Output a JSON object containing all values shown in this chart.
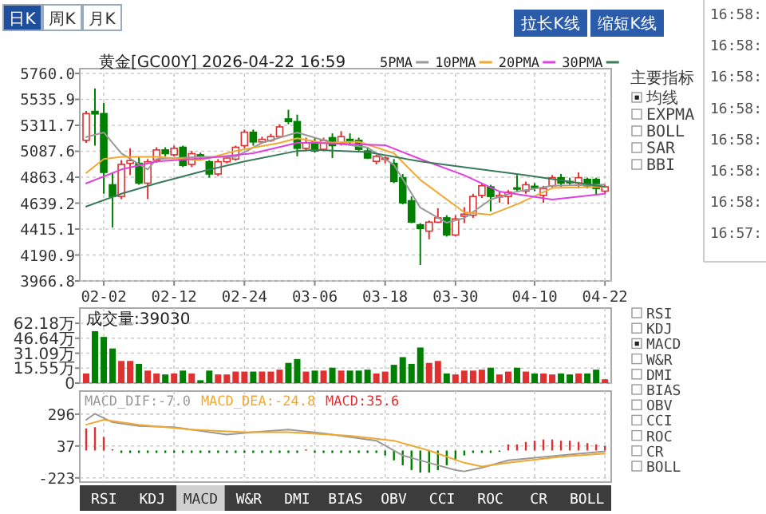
{
  "chart_data": [
    {
      "type": "candlestick",
      "title": "黄金[GC00Y] 2026-04-22 16:59",
      "categories": [
        null,
        null,
        "02-02",
        null,
        null,
        null,
        null,
        null,
        null,
        null,
        "02-12",
        null,
        null,
        null,
        null,
        null,
        null,
        null,
        "02-24",
        null,
        null,
        null,
        null,
        null,
        null,
        null,
        "03-06",
        null,
        null,
        null,
        null,
        null,
        null,
        null,
        "03-18",
        null,
        null,
        null,
        null,
        null,
        null,
        null,
        "03-30",
        null,
        null,
        null,
        null,
        null,
        null,
        null,
        null,
        "04-10",
        null,
        null,
        null,
        null,
        null,
        null,
        null,
        "04-22"
      ],
      "ohlc": [
        [
          5182,
          5436,
          5160,
          5413
        ],
        [
          5432,
          5630,
          5136,
          5410
        ],
        [
          5413,
          5506,
          4720,
          4905
        ],
        [
          4798,
          4905,
          4429,
          4697
        ],
        [
          4697,
          5011,
          4674,
          4974
        ],
        [
          4983,
          5113,
          4882,
          5007
        ],
        [
          4983,
          5043,
          4798,
          4812
        ],
        [
          4812,
          5020,
          4674,
          4997
        ],
        [
          5011,
          5122,
          4988,
          5099
        ],
        [
          5099,
          5122,
          5043,
          5067
        ],
        [
          5057,
          5136,
          5043,
          5113
        ],
        [
          5122,
          5136,
          4951,
          4965
        ],
        [
          4974,
          5090,
          4951,
          5067
        ],
        [
          5057,
          5076,
          5011,
          5043
        ],
        [
          4997,
          5011,
          4859,
          4891
        ],
        [
          4891,
          5020,
          4872,
          4997
        ],
        [
          4997,
          5043,
          4983,
          5029
        ],
        [
          5020,
          5136,
          5006,
          5122
        ],
        [
          5136,
          5275,
          5113,
          5252
        ],
        [
          5252,
          5275,
          5136,
          5168
        ],
        [
          5168,
          5214,
          5159,
          5191
        ],
        [
          5182,
          5238,
          5168,
          5214
        ],
        [
          5214,
          5321,
          5205,
          5298
        ],
        [
          5367,
          5446,
          5321,
          5344
        ],
        [
          5344,
          5404,
          5044,
          5113
        ],
        [
          5113,
          5205,
          5090,
          5159
        ],
        [
          5168,
          5205,
          5076,
          5090
        ],
        [
          5104,
          5205,
          5090,
          5182
        ],
        [
          5205,
          5242,
          5029,
          5136
        ],
        [
          5159,
          5261,
          5136,
          5214
        ],
        [
          5191,
          5242,
          5150,
          5182
        ],
        [
          5182,
          5205,
          5090,
          5104
        ],
        [
          5090,
          5113,
          5020,
          5029
        ],
        [
          5000,
          5057,
          4974,
          5043
        ],
        [
          5020,
          5043,
          4983,
          5029
        ],
        [
          4983,
          5020,
          4812,
          4826
        ],
        [
          4859,
          4891,
          4628,
          4642
        ],
        [
          4660,
          4697,
          4466,
          4475
        ],
        [
          4452,
          4466,
          4105,
          4420
        ],
        [
          4397,
          4489,
          4327,
          4475
        ],
        [
          4475,
          4595,
          4466,
          4512
        ],
        [
          4512,
          4535,
          4350,
          4364
        ],
        [
          4364,
          4535,
          4350,
          4503
        ],
        [
          4526,
          4604,
          4466,
          4544
        ],
        [
          4535,
          4720,
          4512,
          4697
        ],
        [
          4706,
          4812,
          4683,
          4789
        ],
        [
          4780,
          4798,
          4568,
          4697
        ],
        [
          4692,
          4734,
          4642,
          4706
        ],
        [
          4697,
          4752,
          4628,
          4734
        ],
        [
          4771,
          4882,
          4743,
          4766
        ],
        [
          4743,
          4826,
          4720,
          4798
        ],
        [
          4785,
          4812,
          4743,
          4775
        ],
        [
          4706,
          4789,
          4642,
          4766
        ],
        [
          4789,
          4882,
          4766,
          4859
        ],
        [
          4859,
          4891,
          4780,
          4812
        ],
        [
          4826,
          4859,
          4798,
          4817
        ],
        [
          4812,
          4905,
          4766,
          4859
        ],
        [
          4845,
          4859,
          4766,
          4789
        ],
        [
          4845,
          4859,
          4706,
          4766
        ],
        [
          4743,
          4798,
          4720,
          4780
        ]
      ],
      "colors": [
        "#e03030",
        "#008000",
        "#008000",
        "#008000",
        "#e03030",
        "#e03030",
        "#008000",
        "#e03030",
        "#e03030",
        "#008000",
        "#e03030",
        "#008000",
        "#e03030",
        "#008000",
        "#008000",
        "#e03030",
        "#e03030",
        "#e03030",
        "#e03030",
        "#008000",
        "#e03030",
        "#e03030",
        "#e03030",
        "#008000",
        "#008000",
        "#e03030",
        "#008000",
        "#e03030",
        "#008000",
        "#e03030",
        "#008000",
        "#008000",
        "#008000",
        "#e03030",
        "#e03030",
        "#008000",
        "#008000",
        "#008000",
        "#008000",
        "#e03030",
        "#e03030",
        "#008000",
        "#e03030",
        "#e03030",
        "#e03030",
        "#e03030",
        "#008000",
        "#e03030",
        "#e03030",
        "#008000",
        "#e03030",
        "#008000",
        "#e03030",
        "#e03030",
        "#008000",
        "#008000",
        "#e03030",
        "#008000",
        "#008000",
        "#e03030"
      ],
      "series": [
        {
          "name": "5PMA",
          "type": "line",
          "color": "#999999",
          "values": [
            5210,
            null,
            5250,
            null,
            5070,
            null,
            null,
            4930,
            5020,
            null,
            null,
            null,
            null,
            5040,
            null,
            null,
            null,
            5040,
            null,
            null,
            5160,
            null,
            null,
            null,
            5250,
            null,
            null,
            null,
            5160,
            null,
            null,
            null,
            5120,
            null,
            null,
            4970,
            null,
            null,
            4600,
            null,
            null,
            4470,
            null,
            4510,
            null,
            null,
            4670,
            null,
            null,
            4740,
            null,
            null,
            null,
            4790,
            null,
            null,
            null,
            null,
            null,
            4800
          ]
        },
        {
          "name": "10PMA",
          "type": "line",
          "color": "#f0a830",
          "values": [
            4900,
            null,
            5020,
            null,
            5040,
            null,
            null,
            null,
            5040,
            null,
            null,
            null,
            null,
            5010,
            null,
            null,
            null,
            5090,
            null,
            null,
            null,
            null,
            5160,
            null,
            5200,
            null,
            null,
            5160,
            null,
            null,
            null,
            5170,
            null,
            null,
            null,
            5070,
            null,
            null,
            4840,
            null,
            null,
            null,
            null,
            4560,
            null,
            null,
            4540,
            null,
            null,
            4630,
            null,
            null,
            null,
            4770,
            null,
            null,
            null,
            null,
            null,
            4780
          ]
        },
        {
          "name": "20PMA",
          "type": "line",
          "color": "#e040e0",
          "values": [
            4810,
            null,
            null,
            null,
            4930,
            null,
            null,
            null,
            5000,
            null,
            null,
            null,
            null,
            null,
            5030,
            null,
            null,
            null,
            null,
            5070,
            null,
            null,
            null,
            null,
            5160,
            null,
            5160,
            null,
            null,
            null,
            null,
            null,
            null,
            null,
            5140,
            null,
            null,
            null,
            5020,
            null,
            null,
            null,
            null,
            4880,
            null,
            null,
            null,
            4740,
            null,
            null,
            null,
            null,
            null,
            4670,
            null,
            null,
            null,
            null,
            null,
            4720
          ]
        },
        {
          "name": "30PMA",
          "type": "line",
          "color": "#3a7a5a",
          "values": [
            4610,
            null,
            null,
            null,
            4720,
            null,
            null,
            null,
            4810,
            null,
            null,
            null,
            null,
            4910,
            null,
            null,
            null,
            null,
            5000,
            null,
            null,
            null,
            null,
            null,
            5090,
            null,
            5100,
            null,
            null,
            null,
            null,
            null,
            5080,
            null,
            null,
            null,
            null,
            null,
            5000,
            null,
            null,
            null,
            null,
            4950,
            null,
            null,
            null,
            null,
            null,
            null,
            4880,
            null,
            null,
            null,
            null,
            null,
            null,
            null,
            null,
            4780
          ]
        }
      ],
      "ylim": [
        3966.8,
        5760
      ],
      "yticks": [
        3966.8,
        4190.9,
        4415.1,
        4639.2,
        4863.4,
        5087.6,
        5311.7,
        5535.9,
        {
          "value": 5760,
          "label": "5760.0"
        }
      ],
      "grid": true,
      "legend": "top",
      "annotations": [
        "日K",
        "周K",
        "月K",
        "拉长K线",
        "缩短K线",
        "主要指标",
        "均线",
        "EXPMA",
        "BOLL",
        "SAR",
        "BBI",
        "16:58:",
        "16:58:",
        "16:58:",
        "16:58:",
        "16:58:",
        "16:58:",
        "16:58:",
        "16:57:"
      ]
    },
    {
      "type": "bar",
      "title": "成交量:39030",
      "categories": [
        null,
        null,
        null,
        null,
        null,
        null,
        null,
        null,
        null,
        null,
        null,
        null,
        null,
        null,
        null,
        null,
        null,
        null,
        null,
        null,
        null,
        null,
        null,
        null,
        null,
        null,
        null,
        null,
        null,
        null,
        null,
        null,
        null,
        null,
        null,
        null,
        null,
        null,
        null,
        null,
        null,
        null,
        null,
        null,
        null,
        null,
        null,
        null,
        null,
        null,
        null,
        null,
        null,
        null,
        null,
        null,
        null,
        null,
        null,
        null
      ],
      "values": [
        10,
        54,
        48,
        36,
        23,
        23,
        20,
        13,
        10,
        9,
        10,
        13,
        10,
        3,
        13,
        9,
        9,
        12,
        12,
        12,
        12,
        12,
        14,
        21,
        25,
        12,
        13,
        13,
        16,
        13,
        13,
        13,
        14,
        10,
        12,
        19,
        27,
        20,
        37,
        21,
        23,
        10,
        9,
        13,
        13,
        14,
        16,
        9,
        12,
        16,
        12,
        10,
        10,
        9,
        10,
        9,
        10,
        10,
        14,
        4
      ],
      "colors": [
        "#e03030",
        "#008000",
        "#008000",
        "#008000",
        "#e03030",
        "#e03030",
        "#008000",
        "#e03030",
        "#e03030",
        "#008000",
        "#e03030",
        "#008000",
        "#e03030",
        "#008000",
        "#008000",
        "#e03030",
        "#e03030",
        "#e03030",
        "#e03030",
        "#008000",
        "#e03030",
        "#e03030",
        "#e03030",
        "#008000",
        "#008000",
        "#e03030",
        "#008000",
        "#e03030",
        "#008000",
        "#e03030",
        "#008000",
        "#008000",
        "#008000",
        "#e03030",
        "#e03030",
        "#008000",
        "#008000",
        "#008000",
        "#008000",
        "#e03030",
        "#e03030",
        "#008000",
        "#e03030",
        "#e03030",
        "#e03030",
        "#e03030",
        "#008000",
        "#e03030",
        "#e03030",
        "#008000",
        "#e03030",
        "#008000",
        "#e03030",
        "#e03030",
        "#008000",
        "#008000",
        "#e03030",
        "#008000",
        "#008000",
        "#e03030"
      ],
      "ylim": [
        0,
        78
      ],
      "yticks": [
        0,
        {
          "value": 15.55,
          "label": "15.55万"
        },
        {
          "value": 31.09,
          "label": "31.09万"
        },
        {
          "value": 46.64,
          "label": "46.64万"
        },
        {
          "value": 62.18,
          "label": "62.18万"
        }
      ],
      "grid": true
    },
    {
      "type": "bar",
      "categories": [
        null,
        null,
        null,
        null,
        null,
        null,
        null,
        null,
        null,
        null,
        null,
        null,
        null,
        null,
        null,
        null,
        null,
        null,
        null,
        null,
        null,
        null,
        null,
        null,
        null,
        null,
        null,
        null,
        null,
        null,
        null,
        null,
        null,
        null,
        null,
        null,
        null,
        null,
        null,
        null,
        null,
        null,
        null,
        null,
        null,
        null,
        null,
        null,
        null,
        null,
        null,
        null,
        null,
        null,
        null,
        null,
        null,
        null,
        null,
        null
      ],
      "series": [
        {
          "name": "MACD_DIF:-7.0",
          "type": "line",
          "color": "#999999",
          "values": [
            250,
            300,
            null,
            230,
            null,
            null,
            200,
            null,
            null,
            null,
            190,
            null,
            null,
            null,
            null,
            null,
            130,
            null,
            null,
            150,
            null,
            null,
            null,
            170,
            null,
            null,
            null,
            140,
            null,
            null,
            null,
            null,
            null,
            80,
            null,
            null,
            -40,
            null,
            null,
            -100,
            null,
            null,
            -160,
            -170,
            null,
            -140,
            null,
            null,
            -80,
            null,
            null,
            null,
            null,
            null,
            -40,
            null,
            null,
            null,
            null,
            -7
          ]
        },
        {
          "name": "MACD_DEA:-24.8",
          "type": "line",
          "color": "#f0a830",
          "values": [
            210,
            null,
            250,
            null,
            null,
            null,
            210,
            null,
            null,
            null,
            null,
            null,
            170,
            null,
            null,
            null,
            null,
            null,
            150,
            null,
            null,
            null,
            null,
            150,
            null,
            null,
            null,
            null,
            null,
            null,
            120,
            null,
            null,
            null,
            null,
            80,
            null,
            null,
            null,
            0,
            null,
            null,
            null,
            -100,
            null,
            -130,
            null,
            null,
            -100,
            null,
            null,
            null,
            null,
            null,
            -50,
            null,
            null,
            null,
            null,
            -25
          ]
        },
        {
          "name": "MACD:35.6",
          "type": "bar",
          "color": "#e03030",
          "values": [
            180,
            190,
            110,
            10,
            -20,
            -20,
            -20,
            -20,
            -20,
            -20,
            -20,
            -20,
            -20,
            -20,
            -20,
            -20,
            -20,
            -20,
            -20,
            -20,
            -20,
            -20,
            -20,
            -20,
            -20,
            10,
            -20,
            -20,
            -20,
            -20,
            -20,
            -20,
            -20,
            -20,
            -40,
            -80,
            -120,
            -160,
            -180,
            -180,
            -160,
            -120,
            -80,
            -40,
            -20,
            -20,
            -20,
            -10,
            50,
            50,
            70,
            80,
            90,
            90,
            80,
            80,
            70,
            60,
            50,
            36
          ],
          "colors": [
            "#e03030",
            "#e03030",
            "#e03030",
            "#e03030",
            "#008000",
            "#008000",
            "#008000",
            "#008000",
            "#008000",
            "#008000",
            "#008000",
            "#008000",
            "#008000",
            "#008000",
            "#008000",
            "#008000",
            "#008000",
            "#008000",
            "#008000",
            "#008000",
            "#008000",
            "#008000",
            "#008000",
            "#008000",
            "#008000",
            "#e03030",
            "#008000",
            "#008000",
            "#008000",
            "#008000",
            "#008000",
            "#008000",
            "#008000",
            "#008000",
            "#008000",
            "#008000",
            "#008000",
            "#008000",
            "#008000",
            "#008000",
            "#008000",
            "#008000",
            "#008000",
            "#008000",
            "#008000",
            "#008000",
            "#008000",
            "#008000",
            "#e03030",
            "#e03030",
            "#e03030",
            "#e03030",
            "#e03030",
            "#e03030",
            "#e03030",
            "#e03030",
            "#e03030",
            "#e03030",
            "#e03030",
            "#e03030"
          ]
        }
      ],
      "ylim": [
        -257,
        484
      ],
      "yticks": [
        -223,
        37,
        296
      ],
      "grid": true,
      "legend": "top left",
      "annotations": [
        "RSI",
        "KDJ",
        "MACD",
        "W&R",
        "DMI",
        "BIAS",
        "OBV",
        "CCI",
        "ROC",
        "CR",
        "BOLL",
        "RSI",
        "KDJ",
        "MACD",
        "W&R",
        "DMI",
        "BIAS",
        "OBV",
        "CCI",
        "ROC",
        "CR",
        "BOLL"
      ]
    }
  ]
}
